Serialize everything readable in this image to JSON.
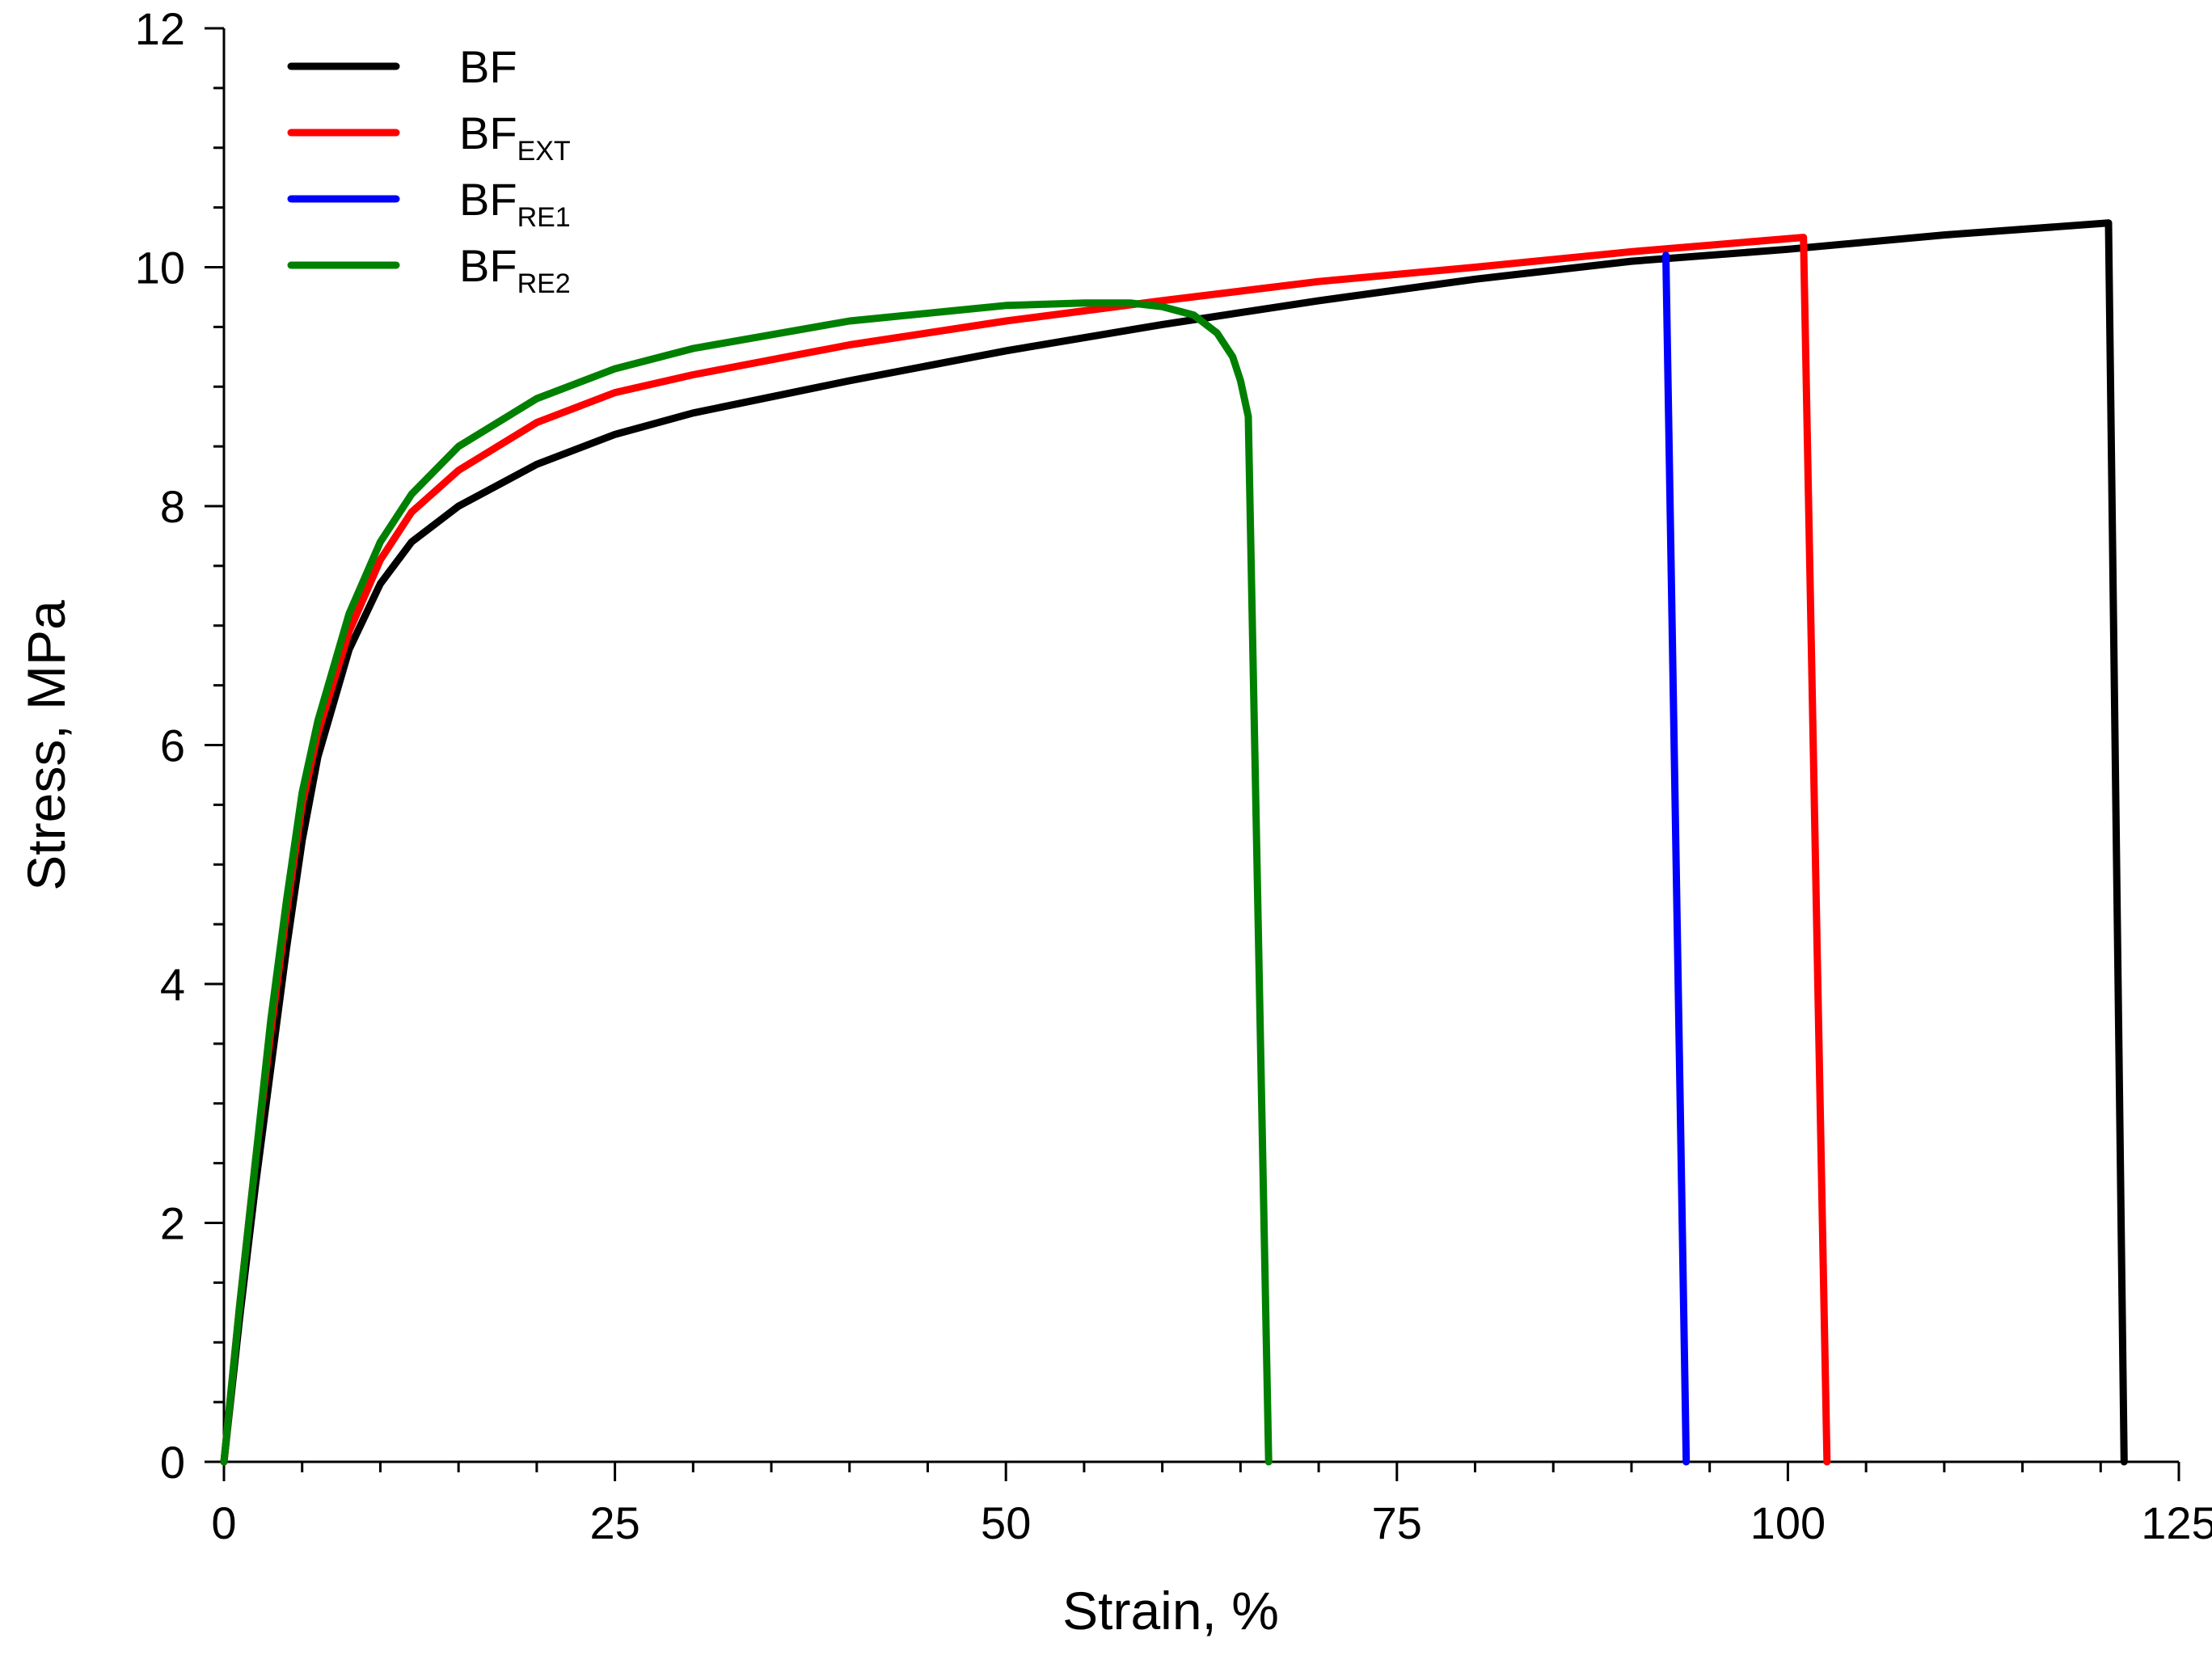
{
  "chart_data": {
    "type": "line",
    "title": "",
    "xlabel": "Strain, %",
    "ylabel": "Stress,  MPa",
    "xlim": [
      0,
      125
    ],
    "ylim": [
      0,
      12
    ],
    "x_ticks": [
      0,
      25,
      50,
      75,
      100,
      125
    ],
    "x_tick_labels": [
      "0",
      "25",
      "50",
      "75",
      "100",
      "125"
    ],
    "x_minor_step": 5,
    "y_ticks": [
      0,
      2,
      4,
      6,
      8,
      10,
      12
    ],
    "y_tick_labels": [
      "0",
      "2",
      "4",
      "6",
      "8",
      "10",
      "12"
    ],
    "y_minor_step": 0.5,
    "grid": false,
    "legend_position": "top-left",
    "series": [
      {
        "name": "BF",
        "legend_main": "BF",
        "legend_sub": "",
        "color": "#000000",
        "points": [
          [
            0,
            0
          ],
          [
            1,
            1.2
          ],
          [
            2,
            2.3
          ],
          [
            3,
            3.3
          ],
          [
            4,
            4.3
          ],
          [
            5,
            5.2
          ],
          [
            6,
            5.9
          ],
          [
            8,
            6.8
          ],
          [
            10,
            7.35
          ],
          [
            12,
            7.7
          ],
          [
            15,
            8.0
          ],
          [
            20,
            8.35
          ],
          [
            25,
            8.6
          ],
          [
            30,
            8.78
          ],
          [
            40,
            9.05
          ],
          [
            50,
            9.3
          ],
          [
            60,
            9.52
          ],
          [
            70,
            9.72
          ],
          [
            80,
            9.9
          ],
          [
            90,
            10.05
          ],
          [
            100,
            10.15
          ],
          [
            110,
            10.27
          ],
          [
            120.5,
            10.37
          ],
          [
            121.5,
            0
          ]
        ]
      },
      {
        "name": "BF_EXT",
        "legend_main": "BF",
        "legend_sub": "EXT",
        "color": "#ff0000",
        "points": [
          [
            0,
            0
          ],
          [
            1,
            1.3
          ],
          [
            2,
            2.5
          ],
          [
            3,
            3.6
          ],
          [
            4,
            4.6
          ],
          [
            5,
            5.5
          ],
          [
            6,
            6.1
          ],
          [
            8,
            6.95
          ],
          [
            10,
            7.55
          ],
          [
            12,
            7.95
          ],
          [
            15,
            8.3
          ],
          [
            20,
            8.7
          ],
          [
            25,
            8.95
          ],
          [
            30,
            9.1
          ],
          [
            40,
            9.35
          ],
          [
            50,
            9.55
          ],
          [
            60,
            9.72
          ],
          [
            70,
            9.88
          ],
          [
            80,
            10.0
          ],
          [
            90,
            10.13
          ],
          [
            101,
            10.25
          ],
          [
            102.5,
            0
          ]
        ]
      },
      {
        "name": "BF_RE1",
        "legend_main": "BF",
        "legend_sub": "RE1",
        "color": "#0000ff",
        "points": [
          [
            92.2,
            10.1
          ],
          [
            93.5,
            0
          ]
        ]
      },
      {
        "name": "BF_RE2",
        "legend_main": "BF",
        "legend_sub": "RE2",
        "color": "#008000",
        "points": [
          [
            0,
            0
          ],
          [
            1,
            1.3
          ],
          [
            2,
            2.5
          ],
          [
            3,
            3.7
          ],
          [
            4,
            4.7
          ],
          [
            5,
            5.6
          ],
          [
            6,
            6.2
          ],
          [
            8,
            7.1
          ],
          [
            10,
            7.7
          ],
          [
            12,
            8.1
          ],
          [
            15,
            8.5
          ],
          [
            20,
            8.9
          ],
          [
            25,
            9.15
          ],
          [
            30,
            9.32
          ],
          [
            40,
            9.55
          ],
          [
            50,
            9.68
          ],
          [
            55,
            9.7
          ],
          [
            58,
            9.7
          ],
          [
            60,
            9.67
          ],
          [
            62,
            9.6
          ],
          [
            63.5,
            9.45
          ],
          [
            64.5,
            9.25
          ],
          [
            65,
            9.05
          ],
          [
            65.5,
            8.75
          ],
          [
            66.8,
            0
          ]
        ]
      }
    ]
  }
}
